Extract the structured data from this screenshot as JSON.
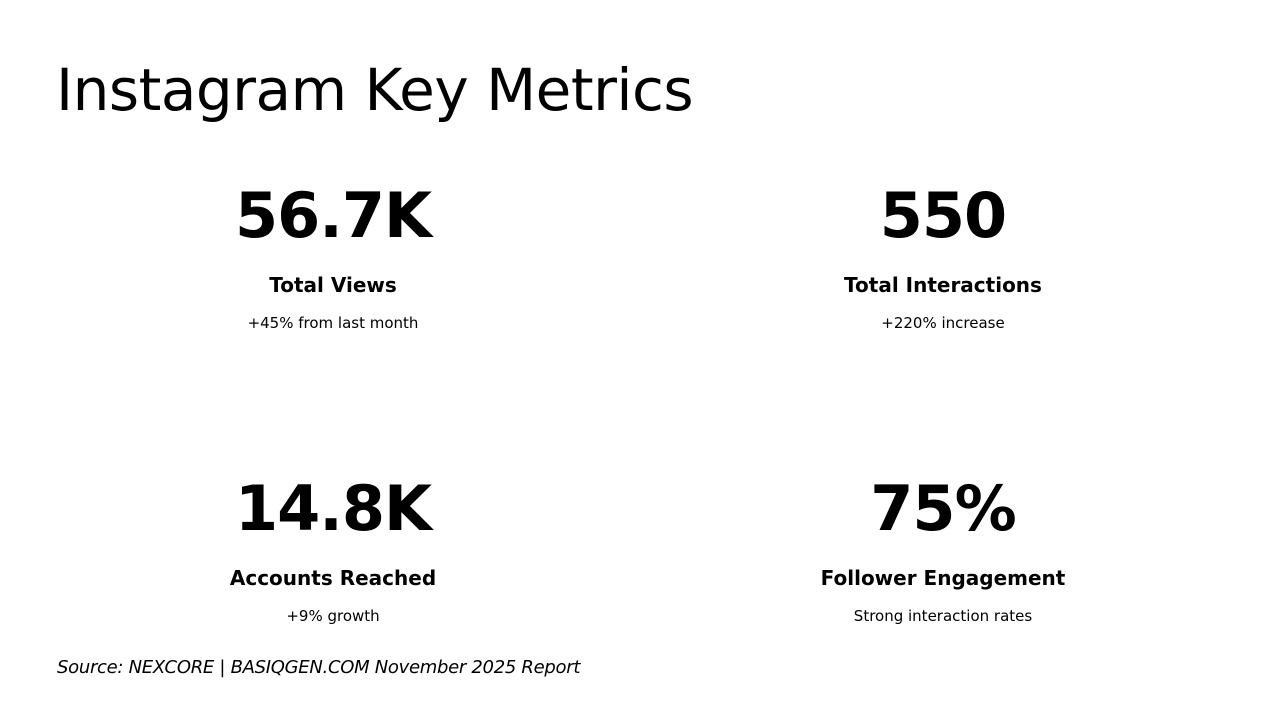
{
  "title": "Instagram Key Metrics",
  "metrics": [
    {
      "value": "56.7K",
      "label": "Total Views",
      "note": "+45% from last month"
    },
    {
      "value": "550",
      "label": "Total Interactions",
      "note": "+220% increase"
    },
    {
      "value": "14.8K",
      "label": "Accounts Reached",
      "note": "+9% growth"
    },
    {
      "value": "75%",
      "label": "Follower Engagement",
      "note": "Strong interaction rates"
    }
  ],
  "source": "Source: NEXCORE | BASIQGEN.COM November 2025 Report"
}
